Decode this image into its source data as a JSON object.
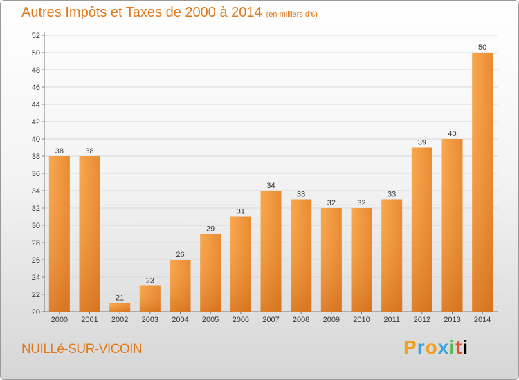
{
  "title": "Autres Impôts et Taxes de 2000 à 2014",
  "subtitle": "(en milliers d'€)",
  "place_name": "NUILLé-SUR-VICOIN",
  "brand_letters": [
    "P",
    "r",
    "o",
    "x",
    "i",
    "t",
    "i"
  ],
  "colors": {
    "accent": "#e07818",
    "bar_light": "#f8a850",
    "bar_dark": "#d97018"
  },
  "chart_data": {
    "type": "bar",
    "categories": [
      "2000",
      "2001",
      "2002",
      "2003",
      "2004",
      "2005",
      "2006",
      "2007",
      "2008",
      "2009",
      "2010",
      "2011",
      "2012",
      "2013",
      "2014"
    ],
    "values": [
      38,
      38,
      21,
      23,
      26,
      29,
      31,
      34,
      33,
      32,
      32,
      33,
      39,
      40,
      50
    ],
    "ylim": [
      20,
      52
    ],
    "yticks": [
      20,
      22,
      24,
      26,
      28,
      30,
      32,
      34,
      36,
      38,
      40,
      42,
      44,
      46,
      48,
      50,
      52
    ],
    "grid": true
  }
}
